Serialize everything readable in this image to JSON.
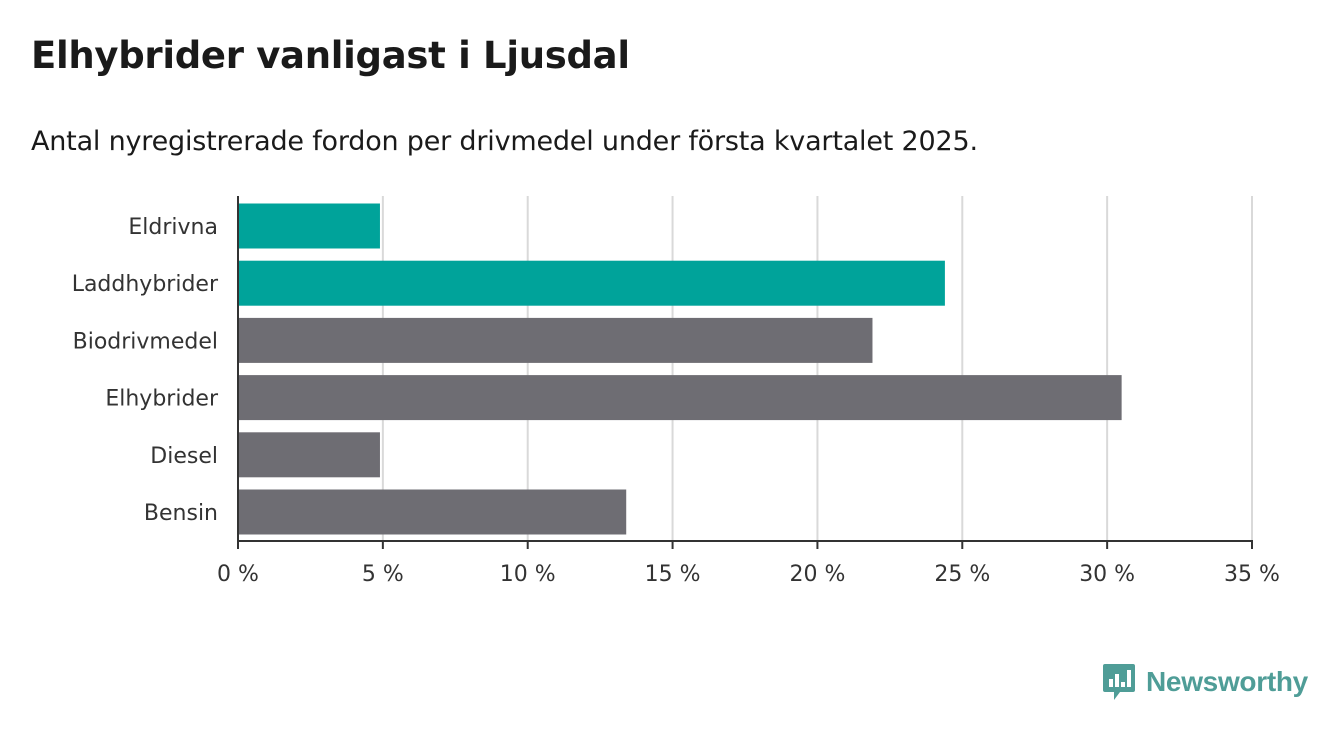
{
  "title": "Elhybrider vanligast i Ljusdal",
  "subtitle": "Antal nyregistrerade fordon per drivmedel under första kvartalet 2025.",
  "brand": {
    "name": "Newsworthy",
    "color": "#4f9d97",
    "icon": "bar-chart-logo-icon"
  },
  "chart_data": {
    "type": "bar",
    "orientation": "horizontal",
    "categories": [
      "Eldrivna",
      "Laddhybrider",
      "Biodrivmedel",
      "Elhybrider",
      "Diesel",
      "Bensin"
    ],
    "values": [
      4.9,
      24.4,
      21.9,
      30.5,
      4.9,
      13.4
    ],
    "colors": [
      "#00a39a",
      "#00a39a",
      "#6e6d73",
      "#6e6d73",
      "#6e6d73",
      "#6e6d73"
    ],
    "xlim": [
      0,
      35
    ],
    "xticks": [
      0,
      5,
      10,
      15,
      20,
      25,
      30,
      35
    ],
    "xtick_labels": [
      "0 %",
      "5 %",
      "10 %",
      "15 %",
      "20 %",
      "25 %",
      "30 %",
      "35 %"
    ],
    "grid": true,
    "xlabel": "",
    "ylabel": ""
  }
}
